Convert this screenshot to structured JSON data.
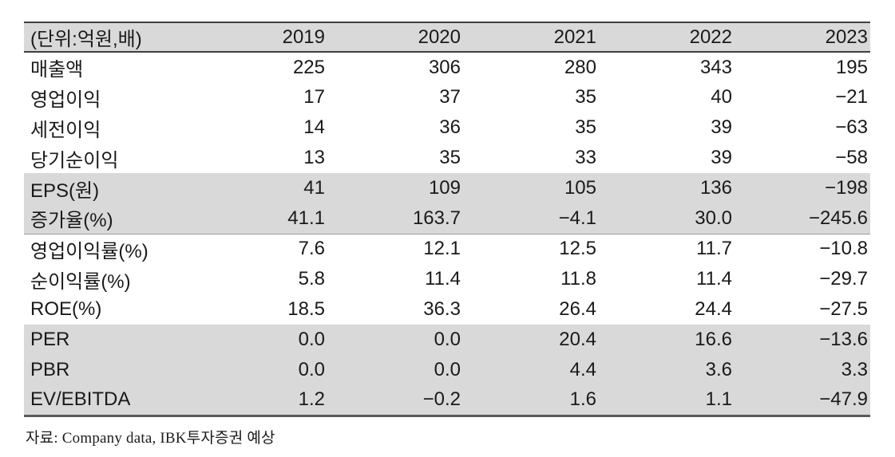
{
  "table": {
    "unit_label": "(단위:억원,배)",
    "columns": [
      "2019",
      "2020",
      "2021",
      "2022",
      "2023"
    ],
    "rows": [
      {
        "label": "매출액",
        "values": [
          "225",
          "306",
          "280",
          "343",
          "195"
        ],
        "shaded": false
      },
      {
        "label": "영업이익",
        "values": [
          "17",
          "37",
          "35",
          "40",
          "−21"
        ],
        "shaded": false
      },
      {
        "label": "세전이익",
        "values": [
          "14",
          "36",
          "35",
          "39",
          "−63"
        ],
        "shaded": false
      },
      {
        "label": "당기순이익",
        "values": [
          "13",
          "35",
          "33",
          "39",
          "−58"
        ],
        "shaded": false
      },
      {
        "label": "EPS(원)",
        "values": [
          "41",
          "109",
          "105",
          "136",
          "−198"
        ],
        "shaded": true
      },
      {
        "label": "증가율(%)",
        "values": [
          "41.1",
          "163.7",
          "−4.1",
          "30.0",
          "−245.6"
        ],
        "shaded": true
      },
      {
        "label": "영업이익률(%)",
        "values": [
          "7.6",
          "12.1",
          "12.5",
          "11.7",
          "−10.8"
        ],
        "shaded": false
      },
      {
        "label": "순이익률(%)",
        "values": [
          "5.8",
          "11.4",
          "11.8",
          "11.4",
          "−29.7"
        ],
        "shaded": false
      },
      {
        "label": "ROE(%)",
        "values": [
          "18.5",
          "36.3",
          "26.4",
          "24.4",
          "−27.5"
        ],
        "shaded": false
      },
      {
        "label": "PER",
        "values": [
          "0.0",
          "0.0",
          "20.4",
          "16.6",
          "−13.6"
        ],
        "shaded": true
      },
      {
        "label": "PBR",
        "values": [
          "0.0",
          "0.0",
          "4.4",
          "3.6",
          "3.3"
        ],
        "shaded": true
      },
      {
        "label": "EV/EBITDA",
        "values": [
          "1.2",
          "−0.2",
          "1.6",
          "1.1",
          "−47.9"
        ],
        "shaded": true
      }
    ]
  },
  "footer": {
    "source": "자료: Company data, IBK투자증권 예상"
  },
  "colors": {
    "row_shade": "#d9d9d9",
    "border_dark": "#3f3f3f",
    "border_bottom": "#5a5a5a",
    "text": "#1a1a1a"
  }
}
